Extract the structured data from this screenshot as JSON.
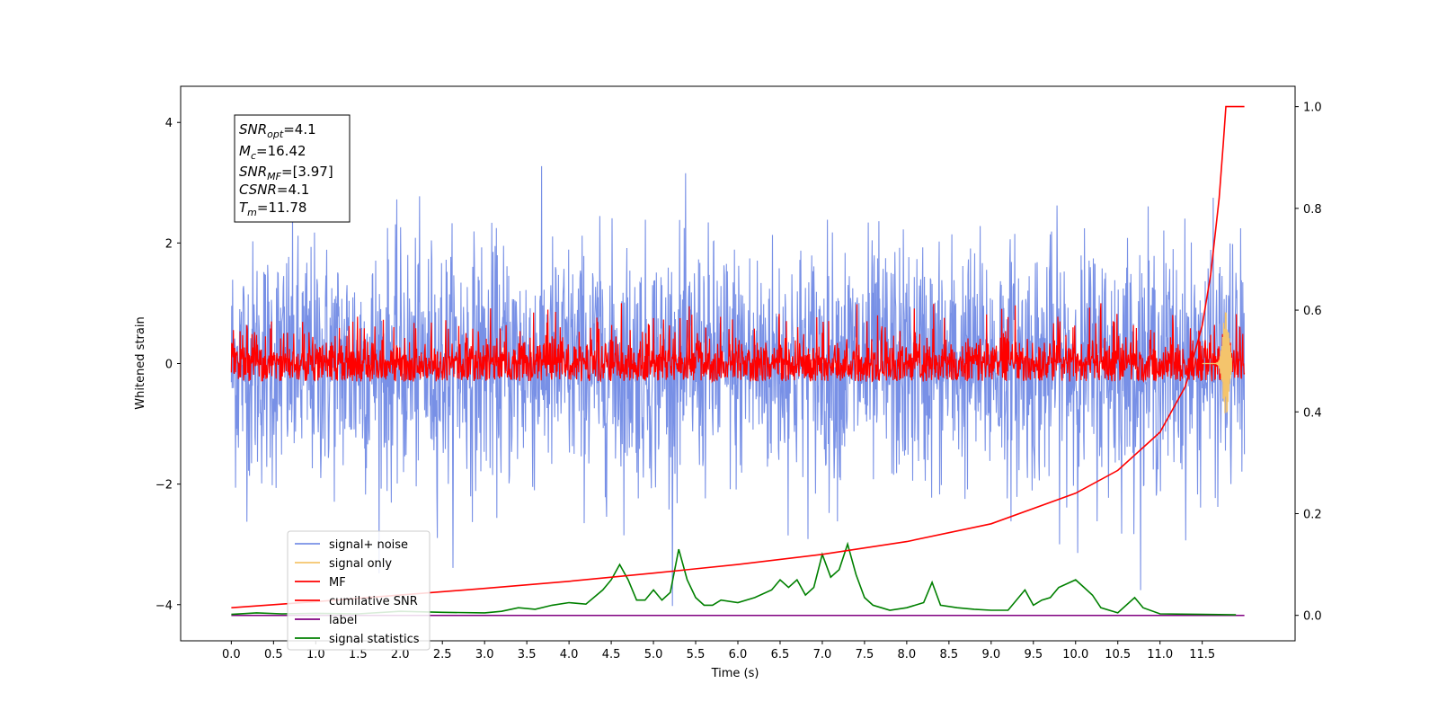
{
  "chart_data": {
    "type": "line",
    "xlabel": "Time (s)",
    "ylabel": "Whitened strain",
    "xlim": [
      -0.6,
      12.6
    ],
    "ylim": [
      -4.6,
      4.6
    ],
    "y2lim": [
      -0.05,
      1.04
    ],
    "xticks": [
      "0.0",
      "0.5",
      "1.0",
      "1.5",
      "2.0",
      "2.5",
      "3.0",
      "3.5",
      "4.0",
      "4.5",
      "5.0",
      "5.5",
      "6.0",
      "6.5",
      "7.0",
      "7.5",
      "8.0",
      "8.5",
      "9.0",
      "9.5",
      "10.0",
      "10.5",
      "11.0",
      "11.5"
    ],
    "yticks": [
      "4",
      "2",
      "0",
      "−2",
      "−4"
    ],
    "y2ticks": [
      "1.0",
      "0.8",
      "0.6",
      "0.4",
      "0.2",
      "0.0"
    ],
    "legend_position": "lower-left",
    "info_box": {
      "snr_opt": {
        "base": "SNR",
        "sub": "opt",
        "value": "=4.1"
      },
      "mc": {
        "base": "M",
        "sub": "c",
        "value": "=16.42"
      },
      "snr_mf": {
        "base": "SNR",
        "sub": "MF",
        "value": "=[3.97]"
      },
      "csnr": {
        "base": "CSNR",
        "sub": "",
        "value": "=4.1"
      },
      "tm": {
        "base": "T",
        "sub": "m",
        "value": "=11.78"
      }
    },
    "series": [
      {
        "name": "signal+ noise",
        "color": "#7890e6",
        "description_kind": "noise",
        "x_range": [
          0.0,
          12.0
        ],
        "amplitude_std": 1.0
      },
      {
        "name": "signal only",
        "color": "#f4c46c",
        "description_kind": "chirp",
        "x_range": [
          11.5,
          11.85
        ],
        "peak": 0.9
      },
      {
        "name": "MF",
        "color": "#ff0000",
        "description_kind": "noise",
        "x_range": [
          0.0,
          12.0
        ],
        "amplitude_std": 0.3
      },
      {
        "name": "cumilative SNR",
        "color": "#ff0000",
        "axis": "right",
        "x": [
          0.0,
          1.0,
          2.0,
          3.0,
          4.0,
          5.0,
          6.0,
          7.0,
          8.0,
          9.0,
          10.0,
          10.5,
          11.0,
          11.3,
          11.5,
          11.6,
          11.7,
          11.75,
          11.78,
          12.0
        ],
        "values": [
          0.015,
          0.027,
          0.04,
          0.053,
          0.067,
          0.083,
          0.1,
          0.12,
          0.145,
          0.18,
          0.24,
          0.285,
          0.36,
          0.45,
          0.57,
          0.67,
          0.82,
          0.93,
          1.0,
          1.0
        ]
      },
      {
        "name": "label",
        "color": "#800080",
        "axis": "right",
        "x": [
          0.0,
          12.0
        ],
        "values": [
          0.0,
          0.0
        ]
      },
      {
        "name": "signal statistics",
        "color": "#008000",
        "axis": "right",
        "x": [
          0.0,
          0.3,
          0.6,
          1.0,
          1.5,
          2.0,
          2.5,
          3.0,
          3.2,
          3.4,
          3.6,
          3.8,
          4.0,
          4.2,
          4.4,
          4.5,
          4.6,
          4.7,
          4.8,
          4.9,
          5.0,
          5.1,
          5.2,
          5.3,
          5.4,
          5.5,
          5.6,
          5.7,
          5.8,
          6.0,
          6.2,
          6.4,
          6.5,
          6.6,
          6.7,
          6.8,
          6.9,
          7.0,
          7.1,
          7.2,
          7.3,
          7.4,
          7.5,
          7.6,
          7.7,
          7.8,
          8.0,
          8.2,
          8.3,
          8.4,
          8.6,
          8.8,
          9.0,
          9.2,
          9.4,
          9.5,
          9.6,
          9.7,
          9.8,
          10.0,
          10.1,
          10.2,
          10.3,
          10.5,
          10.7,
          10.8,
          11.0,
          11.5,
          11.9
        ],
        "values": [
          0.002,
          0.005,
          0.003,
          0.004,
          0.003,
          0.008,
          0.006,
          0.005,
          0.008,
          0.015,
          0.012,
          0.02,
          0.025,
          0.022,
          0.05,
          0.07,
          0.1,
          0.07,
          0.03,
          0.03,
          0.05,
          0.03,
          0.045,
          0.13,
          0.07,
          0.035,
          0.02,
          0.02,
          0.03,
          0.025,
          0.035,
          0.05,
          0.07,
          0.055,
          0.07,
          0.04,
          0.055,
          0.12,
          0.075,
          0.09,
          0.14,
          0.08,
          0.035,
          0.02,
          0.015,
          0.01,
          0.015,
          0.025,
          0.065,
          0.02,
          0.015,
          0.012,
          0.01,
          0.01,
          0.05,
          0.02,
          0.03,
          0.035,
          0.055,
          0.07,
          0.055,
          0.04,
          0.015,
          0.005,
          0.035,
          0.015,
          0.003,
          0.002,
          0.001
        ]
      }
    ]
  }
}
